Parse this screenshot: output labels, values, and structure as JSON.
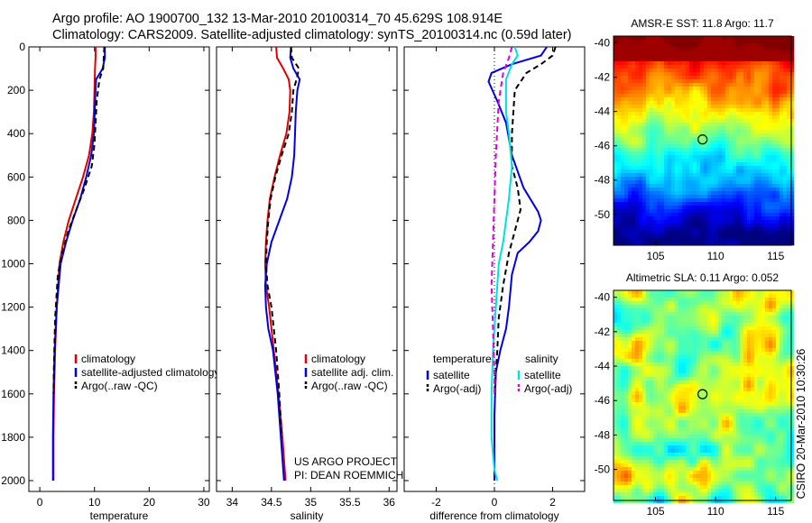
{
  "header": {
    "line1": "Argo profile: AO 1900700_132 13-Mar-2010 20100314_70 45.629S 108.914E",
    "line2": "Climatology: CARS2009. Satellite-adjusted climatology: synTS_20100314.nc (0.59d later)"
  },
  "footer": {
    "project": "US ARGO PROJECT",
    "pi": "PI: DEAN ROEMMICH",
    "stamp": "CSIRO 20-Mar-2010 10:30:26"
  },
  "colors": {
    "climatology": "#e00000",
    "satellite": "#0000e0",
    "argo": "#000000",
    "cyan": "#00e0e0",
    "magenta": "#e000e0"
  },
  "chart_data": [
    {
      "id": "temperature",
      "type": "line",
      "xlabel": "temperature",
      "ylabel": "",
      "xlim": [
        -2,
        31
      ],
      "ylim": [
        0,
        2050
      ],
      "y_reversed": true,
      "xticks": [
        0,
        10,
        20,
        30
      ],
      "yticks": [
        0,
        200,
        400,
        600,
        800,
        1000,
        1200,
        1400,
        1600,
        1800,
        2000
      ],
      "legend": [
        "climatology",
        "satellite-adjusted climatology",
        "Argo(..raw -QC)"
      ],
      "series": [
        {
          "name": "climatology",
          "color": "#e00000",
          "dash": false,
          "x": [
            10.2,
            10.2,
            10.1,
            10.0,
            9.9,
            9.6,
            9.0,
            7.9,
            6.6,
            5.3,
            4.3,
            3.6,
            3.1,
            2.8,
            2.6,
            2.5,
            2.5
          ],
          "y": [
            0,
            50,
            100,
            200,
            300,
            400,
            500,
            600,
            700,
            800,
            900,
            1000,
            1200,
            1400,
            1600,
            1800,
            2000
          ]
        },
        {
          "name": "satellite-adjusted climatology",
          "color": "#0000e0",
          "dash": false,
          "x": [
            11.9,
            11.9,
            11.5,
            10.3,
            10.2,
            9.9,
            9.4,
            8.5,
            7.4,
            6.0,
            4.8,
            3.8,
            3.1,
            2.7,
            2.5,
            2.4,
            2.4
          ],
          "y": [
            0,
            50,
            100,
            150,
            200,
            400,
            500,
            600,
            700,
            800,
            900,
            1000,
            1200,
            1400,
            1600,
            1800,
            2000
          ]
        },
        {
          "name": "Argo(..raw -QC)",
          "color": "#000000",
          "dash": true,
          "x": [
            11.8,
            11.7,
            11.6,
            10.9,
            10.4,
            10.0,
            9.5,
            8.2,
            6.7,
            5.2,
            4.1,
            3.3,
            2.8,
            2.6,
            2.5
          ],
          "y": [
            0,
            50,
            100,
            150,
            250,
            450,
            550,
            650,
            750,
            850,
            950,
            1050,
            1250,
            1450,
            1600
          ]
        }
      ]
    },
    {
      "id": "salinity",
      "type": "line",
      "xlabel": "salinity",
      "ylabel": "",
      "xlim": [
        33.8,
        36.1
      ],
      "ylim": [
        0,
        2050
      ],
      "y_reversed": true,
      "xticks": [
        34,
        34.5,
        35,
        35.5,
        36
      ],
      "legend": [
        "climatology",
        "satellite adj. clim.",
        "Argo(..raw -QC)"
      ],
      "series": [
        {
          "name": "climatology",
          "color": "#e00000",
          "dash": false,
          "x": [
            34.56,
            34.57,
            34.65,
            34.72,
            34.74,
            34.73,
            34.69,
            34.61,
            34.54,
            34.48,
            34.45,
            34.43,
            34.42,
            34.43,
            34.47,
            34.53,
            34.59,
            34.64,
            34.68
          ],
          "y": [
            0,
            50,
            100,
            150,
            200,
            300,
            400,
            500,
            600,
            700,
            800,
            900,
            1000,
            1100,
            1200,
            1400,
            1600,
            1800,
            2000
          ]
        },
        {
          "name": "satellite adj. clim.",
          "color": "#0000e0",
          "dash": false,
          "x": [
            34.75,
            34.74,
            34.78,
            34.86,
            34.83,
            34.81,
            34.8,
            34.79,
            34.76,
            34.7,
            34.6,
            34.5,
            34.44,
            34.42,
            34.43,
            34.46,
            34.52,
            34.58,
            34.62,
            34.66
          ],
          "y": [
            0,
            50,
            100,
            150,
            200,
            300,
            400,
            500,
            600,
            700,
            800,
            900,
            1000,
            1100,
            1200,
            1300,
            1400,
            1600,
            1800,
            2000
          ]
        },
        {
          "name": "Argo(..raw -QC)",
          "color": "#000000",
          "dash": true,
          "x": [
            34.75,
            34.76,
            34.85,
            34.82,
            34.78,
            34.76,
            34.72,
            34.63,
            34.55,
            34.49,
            34.46,
            34.44,
            34.43,
            34.45,
            34.5,
            34.56,
            34.6,
            34.63
          ],
          "y": [
            0,
            50,
            100,
            150,
            200,
            300,
            400,
            500,
            600,
            700,
            800,
            900,
            1000,
            1100,
            1200,
            1400,
            1600,
            1800
          ]
        }
      ]
    },
    {
      "id": "difference",
      "type": "line",
      "xlabel": "difference from climatology",
      "ylabel": "",
      "xlim": [
        -3.1,
        3.1
      ],
      "ylim": [
        0,
        2050
      ],
      "y_reversed": true,
      "xticks": [
        -2,
        0,
        2
      ],
      "legend_left_title": "temperature",
      "legend_right_title": "salinity",
      "legend": [
        "satellite",
        "Argo(-adj)",
        "satellite",
        "Argo(-adj)"
      ],
      "series": [
        {
          "name": "satellite",
          "group": "temperature",
          "color": "#0000e0",
          "dash": false,
          "x": [
            1.8,
            1.6,
            0.6,
            -0.1,
            -0.2,
            0.1,
            0.4,
            0.6,
            1.0,
            1.5,
            1.6,
            1.5,
            1.2,
            0.8,
            0.6,
            0.5,
            0.4,
            0.2,
            0.05,
            0.0,
            0.0
          ],
          "y": [
            0,
            40,
            80,
            120,
            160,
            250,
            350,
            500,
            650,
            760,
            800,
            850,
            900,
            950,
            1050,
            1200,
            1300,
            1400,
            1500,
            1700,
            2000
          ]
        },
        {
          "name": "Argo(-adj)",
          "group": "temperature",
          "color": "#000000",
          "dash": true,
          "x": [
            2.1,
            2.0,
            1.6,
            1.1,
            0.7,
            0.6,
            0.6,
            0.8,
            0.9,
            0.7,
            0.5,
            0.3,
            0.15,
            0.1,
            0.05,
            0.0
          ],
          "y": [
            0,
            40,
            80,
            120,
            200,
            400,
            550,
            650,
            750,
            850,
            950,
            1100,
            1250,
            1400,
            1500,
            1600
          ]
        },
        {
          "name": "satellite",
          "group": "salinity",
          "color": "#00e0e0",
          "dash": false,
          "x": [
            0.7,
            0.8,
            0.6,
            0.4,
            0.4,
            0.5,
            0.6,
            0.5,
            0.4,
            0.3,
            0.15,
            0.05,
            -0.05,
            -0.1,
            -0.1,
            0.0,
            0.1
          ],
          "y": [
            0,
            40,
            80,
            150,
            300,
            400,
            550,
            700,
            800,
            900,
            1000,
            1200,
            1400,
            1600,
            1800,
            1950,
            2000
          ]
        },
        {
          "name": "Argo(-adj)",
          "group": "salinity",
          "color": "#e000e0",
          "dash": true,
          "x": [
            0.6,
            0.5,
            0.3,
            0.15,
            0.05,
            0.0,
            -0.05,
            -0.1,
            -0.05,
            0.0,
            0.0
          ],
          "y": [
            0,
            50,
            120,
            250,
            500,
            700,
            900,
            1100,
            1300,
            1500,
            1600
          ]
        }
      ]
    },
    {
      "id": "sst_map",
      "type": "heatmap",
      "title": "AMSR-E SST: 11.8 Argo: 11.7",
      "xlim": [
        101.5,
        116.3
      ],
      "ylim": [
        -51.8,
        -39.6
      ],
      "xticks": [
        105,
        110,
        115
      ],
      "yticks": [
        -40,
        -42,
        -44,
        -46,
        -48,
        -50
      ],
      "marker": {
        "lon": 108.914,
        "lat": -45.629
      }
    },
    {
      "id": "sla_map",
      "type": "heatmap",
      "title": "Altimetric SLA: 0.11 Argo: 0.052",
      "xlim": [
        101.5,
        116.3
      ],
      "ylim": [
        -51.8,
        -39.6
      ],
      "xticks": [
        105,
        110,
        115
      ],
      "yticks": [
        -40,
        -42,
        -44,
        -46,
        -48,
        -50
      ],
      "marker": {
        "lon": 108.914,
        "lat": -45.629
      }
    }
  ]
}
